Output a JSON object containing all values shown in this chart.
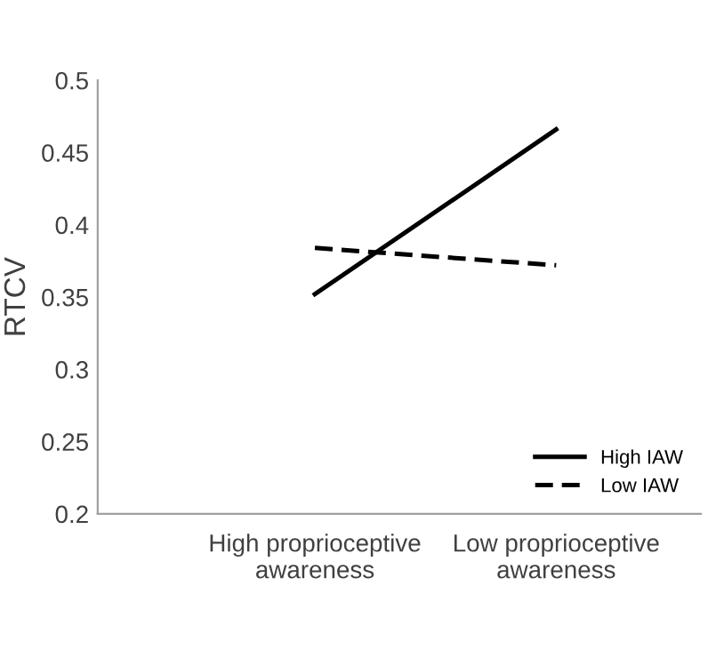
{
  "chart_data": {
    "type": "line",
    "ylabel": "RTCV",
    "categories": [
      "High proprioceptive\nawareness",
      "Low proprioceptive\nawareness"
    ],
    "series": [
      {
        "name": "High IAW",
        "color": "#000000",
        "values": [
          0.352,
          0.466
        ],
        "line_style": "solid"
      },
      {
        "name": "Low IAW",
        "color": "#000000",
        "values": [
          0.384,
          0.372
        ],
        "line_style": "dashed"
      }
    ],
    "ylim": [
      0.2,
      0.5
    ],
    "yticks": [
      0.2,
      0.25,
      0.3,
      0.35,
      0.4,
      0.45,
      0.5
    ],
    "grid": false,
    "legend": "bottom right",
    "marker": "none"
  }
}
